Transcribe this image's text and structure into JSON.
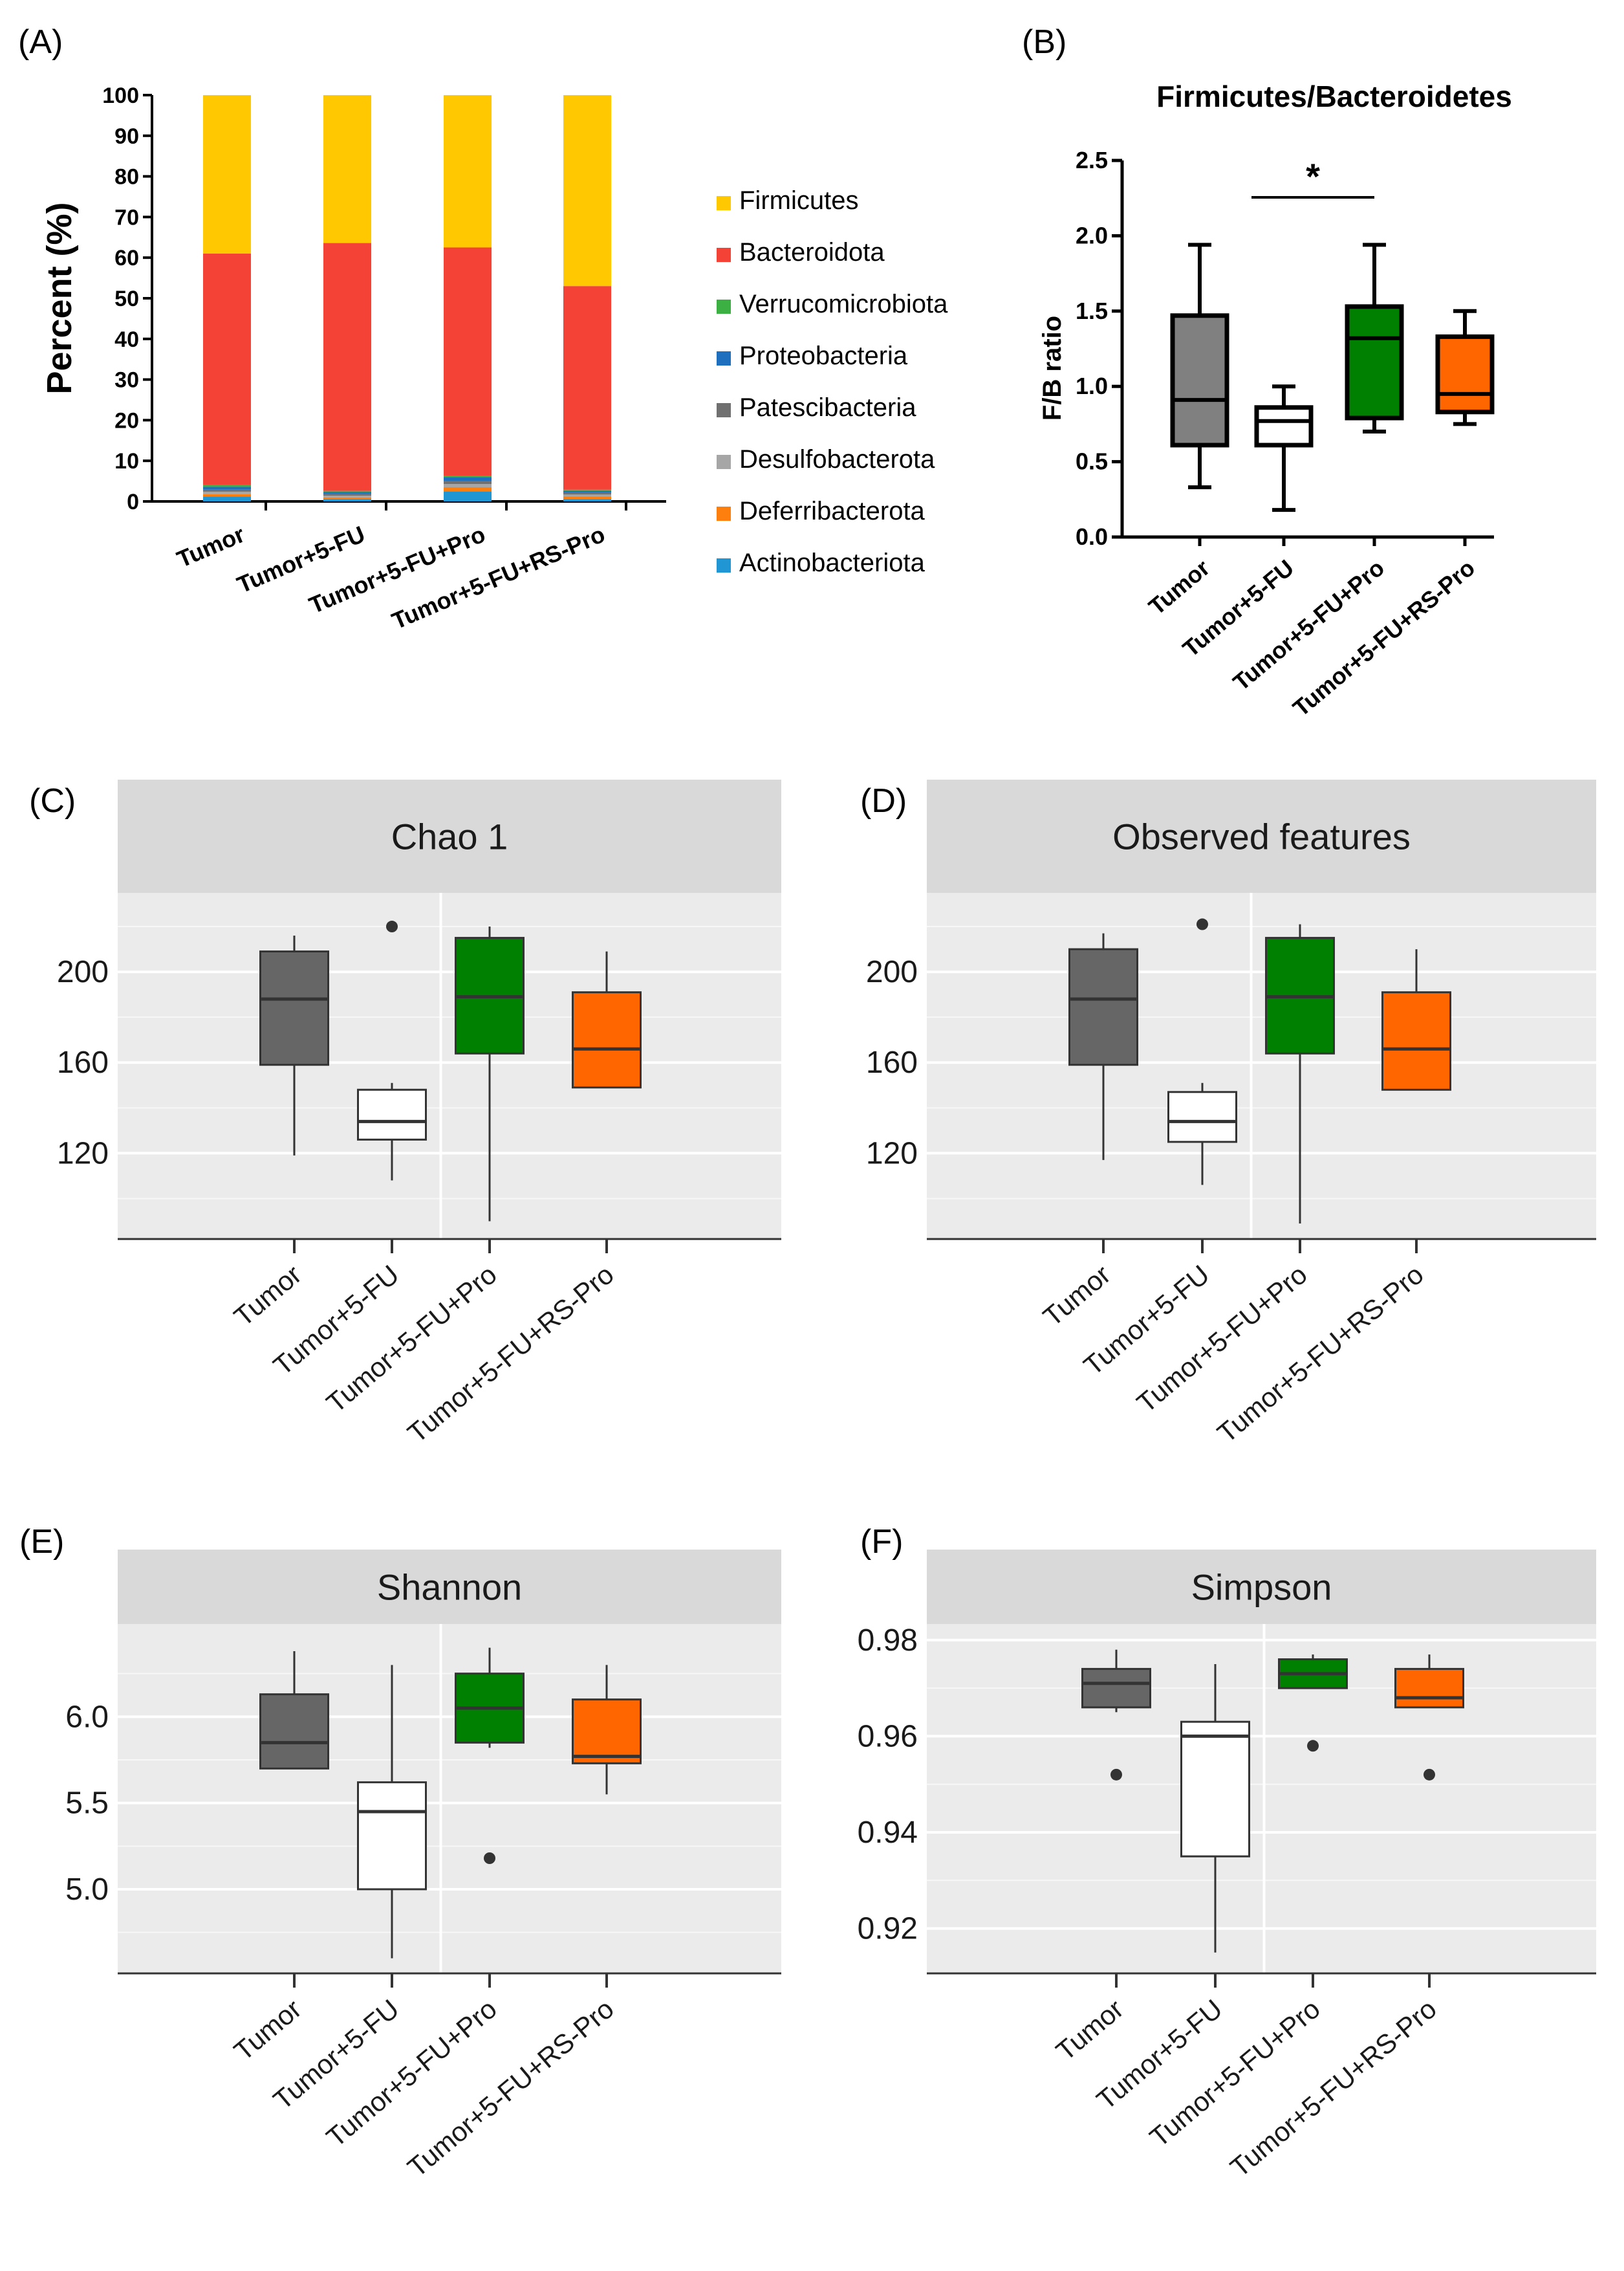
{
  "chart_data": [
    {
      "panel": "(A)",
      "type": "bar",
      "stacked": true,
      "title": "",
      "xlabel": "",
      "ylabel": "Percent (%)",
      "ylim": [
        0,
        100
      ],
      "yticks": [
        0,
        10,
        20,
        30,
        40,
        50,
        60,
        70,
        80,
        90,
        100
      ],
      "categories": [
        "Tumor",
        "Tumor+5-FU",
        "Tumor+5-FU+Pro",
        "Tumor+5-FU+RS-Pro"
      ],
      "series": [
        {
          "name": "Actinobacteriota",
          "color": "#2196d4",
          "values": [
            1.2,
            0.6,
            2.5,
            0.6
          ]
        },
        {
          "name": "Deferribacterota",
          "color": "#ff7f0e",
          "values": [
            0.6,
            0.4,
            1.0,
            0.6
          ]
        },
        {
          "name": "Desulfobacterota",
          "color": "#a6a6a6",
          "values": [
            0.6,
            0.4,
            0.8,
            0.5
          ]
        },
        {
          "name": "Patescibacteria",
          "color": "#707070",
          "values": [
            0.5,
            0.4,
            0.7,
            0.4
          ]
        },
        {
          "name": "Proteobacteria",
          "color": "#1f6fbf",
          "values": [
            0.7,
            0.5,
            1.0,
            0.5
          ]
        },
        {
          "name": "Verrucomicrobiota",
          "color": "#3cb043",
          "values": [
            0.4,
            0.3,
            0.3,
            0.3
          ]
        },
        {
          "name": "Bacteroidota",
          "color": "#f44336",
          "values": [
            57.0,
            61.0,
            56.2,
            50.1
          ]
        },
        {
          "name": "Firmicutes",
          "color": "#ffc800",
          "values": [
            39.0,
            36.4,
            37.5,
            47.0
          ]
        }
      ],
      "legend_order": [
        "Firmicutes",
        "Bacteroidota",
        "Verrucomicrobiota",
        "Proteobacteria",
        "Patescibacteria",
        "Desulfobacterota",
        "Deferribacterota",
        "Actinobacteriota"
      ]
    },
    {
      "panel": "(B)",
      "type": "box",
      "title": "Firmicutes/Bacteroidetes",
      "xlabel": "",
      "ylabel": "F/B ratio",
      "ylim": [
        0,
        2.5
      ],
      "yticks": [
        "0.0",
        "0.5",
        "1.0",
        "1.5",
        "2.0",
        "2.5"
      ],
      "categories": [
        "Tumor",
        "Tumor+5-FU",
        "Tumor+5-FU+Pro",
        "Tumor+5-FU+RS-Pro"
      ],
      "boxes": [
        {
          "min": 0.33,
          "q1": 0.61,
          "median": 0.91,
          "q3": 1.47,
          "max": 1.94,
          "color": "#808080"
        },
        {
          "min": 0.18,
          "q1": 0.61,
          "median": 0.77,
          "q3": 0.86,
          "max": 1.0,
          "color": "#ffffff"
        },
        {
          "min": 0.7,
          "q1": 0.79,
          "median": 1.32,
          "q3": 1.53,
          "max": 1.94,
          "color": "#008000"
        },
        {
          "min": 0.75,
          "q1": 0.83,
          "median": 0.95,
          "q3": 1.33,
          "max": 1.5,
          "color": "#ff6600"
        }
      ],
      "significance": {
        "label": "*",
        "between": [
          1,
          2
        ]
      }
    },
    {
      "panel": "(C)",
      "type": "box",
      "title": "Chao 1",
      "ylim": [
        85,
        232
      ],
      "yticks": [
        "120",
        "160",
        "200"
      ],
      "categories": [
        "Tumor",
        "Tumor+5-FU",
        "Tumor+5-FU+Pro",
        "Tumor+5-FU+RS-Pro"
      ],
      "boxes": [
        {
          "min": 119,
          "q1": 159,
          "median": 188,
          "q3": 209,
          "max": 216,
          "outliers": [],
          "color": "#666666"
        },
        {
          "min": 108,
          "q1": 126,
          "median": 134,
          "q3": 148,
          "max": 151,
          "outliers": [
            220
          ],
          "color": "#ffffff"
        },
        {
          "min": 90,
          "q1": 164,
          "median": 189,
          "q3": 215,
          "max": 220,
          "outliers": [],
          "color": "#008000"
        },
        {
          "min": 149,
          "q1": 149,
          "median": 166,
          "q3": 191,
          "max": 209,
          "outliers": [],
          "color": "#ff6600"
        }
      ]
    },
    {
      "panel": "(D)",
      "type": "box",
      "title": "Observed features",
      "ylim": [
        85,
        232
      ],
      "yticks": [
        "120",
        "160",
        "200"
      ],
      "categories": [
        "Tumor",
        "Tumor+5-FU",
        "Tumor+5-FU+Pro",
        "Tumor+5-FU+RS-Pro"
      ],
      "boxes": [
        {
          "min": 117,
          "q1": 159,
          "median": 188,
          "q3": 210,
          "max": 217,
          "outliers": [],
          "color": "#666666"
        },
        {
          "min": 106,
          "q1": 125,
          "median": 134,
          "q3": 147,
          "max": 151,
          "outliers": [
            221
          ],
          "color": "#ffffff"
        },
        {
          "min": 89,
          "q1": 164,
          "median": 189,
          "q3": 215,
          "max": 221,
          "outliers": [],
          "color": "#008000"
        },
        {
          "min": 148,
          "q1": 148,
          "median": 166,
          "q3": 191,
          "max": 210,
          "outliers": [],
          "color": "#ff6600"
        }
      ]
    },
    {
      "panel": "(E)",
      "type": "box",
      "title": "Shannon",
      "ylim": [
        4.55,
        6.5
      ],
      "yticks": [
        "5.0",
        "5.5",
        "6.0"
      ],
      "categories": [
        "Tumor",
        "Tumor+5-FU",
        "Tumor+5-FU+Pro",
        "Tumor+5-FU+RS-Pro"
      ],
      "boxes": [
        {
          "min": 5.7,
          "q1": 5.7,
          "median": 5.85,
          "q3": 6.13,
          "max": 6.38,
          "outliers": [],
          "color": "#666666"
        },
        {
          "min": 4.6,
          "q1": 5.0,
          "median": 5.45,
          "q3": 5.62,
          "max": 6.3,
          "outliers": [],
          "color": "#ffffff"
        },
        {
          "min": 5.82,
          "q1": 5.85,
          "median": 6.05,
          "q3": 6.25,
          "max": 6.4,
          "outliers": [
            5.18
          ],
          "color": "#008000"
        },
        {
          "min": 5.55,
          "q1": 5.73,
          "median": 5.77,
          "q3": 6.1,
          "max": 6.3,
          "outliers": [],
          "color": "#ff6600"
        }
      ]
    },
    {
      "panel": "(F)",
      "type": "box",
      "title": "Simpson",
      "ylim": [
        0.912,
        0.982
      ],
      "yticks": [
        "0.92",
        "0.94",
        "0.96",
        "0.98"
      ],
      "categories": [
        "Tumor",
        "Tumor+5-FU",
        "Tumor+5-FU+Pro",
        "Tumor+5-FU+RS-Pro"
      ],
      "boxes": [
        {
          "min": 0.965,
          "q1": 0.966,
          "median": 0.971,
          "q3": 0.974,
          "max": 0.978,
          "outliers": [
            0.952
          ],
          "color": "#666666"
        },
        {
          "min": 0.915,
          "q1": 0.935,
          "median": 0.96,
          "q3": 0.963,
          "max": 0.975,
          "outliers": [],
          "color": "#ffffff"
        },
        {
          "min": 0.97,
          "q1": 0.97,
          "median": 0.973,
          "q3": 0.976,
          "max": 0.977,
          "outliers": [
            0.958
          ],
          "color": "#008000"
        },
        {
          "min": 0.966,
          "q1": 0.966,
          "median": 0.968,
          "q3": 0.974,
          "max": 0.977,
          "outliers": [
            0.952
          ],
          "color": "#ff6600"
        }
      ]
    }
  ]
}
